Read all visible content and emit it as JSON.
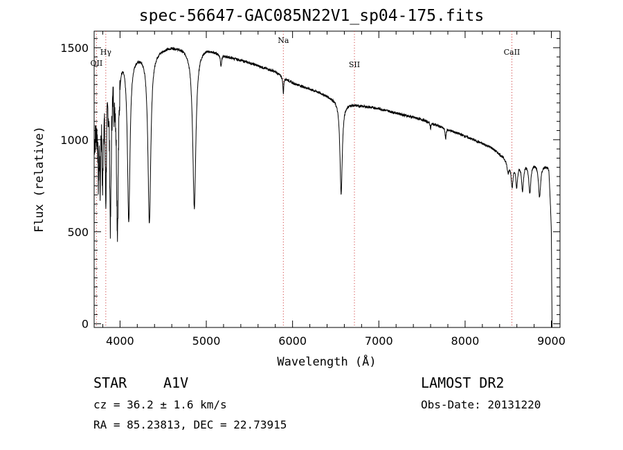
{
  "chart_data": {
    "type": "line",
    "title": "spec-56647-GAC085N22V1_sp04-175.fits",
    "xlabel": "Wavelength (Å)",
    "ylabel": "Flux (relative)",
    "xlim": [
      3700,
      9100
    ],
    "ylim": [
      -20,
      1590
    ],
    "xticks": [
      4000,
      5000,
      6000,
      7000,
      8000,
      9000
    ],
    "yticks": [
      0,
      500,
      1000,
      1500
    ],
    "line_color": "#000000",
    "marker_color": "#cc3333",
    "line_markers": [
      {
        "label": "OII",
        "x": 3727
      },
      {
        "label": "Hγ",
        "x": 3835
      },
      {
        "label": "Na",
        "x": 5893
      },
      {
        "label": "SII",
        "x": 6717
      },
      {
        "label": "CaII",
        "x": 8542
      }
    ],
    "continuum": [
      [
        3700,
        1000
      ],
      [
        3800,
        1300
      ],
      [
        3900,
        1400
      ],
      [
        4000,
        1480
      ],
      [
        4200,
        1470
      ],
      [
        4400,
        1490
      ],
      [
        4600,
        1510
      ],
      [
        4800,
        1500
      ],
      [
        5000,
        1500
      ],
      [
        5200,
        1460
      ],
      [
        5500,
        1420
      ],
      [
        5800,
        1370
      ],
      [
        6000,
        1310
      ],
      [
        6300,
        1260
      ],
      [
        6600,
        1200
      ],
      [
        7000,
        1170
      ],
      [
        7500,
        1110
      ],
      [
        8000,
        1020
      ],
      [
        8300,
        960
      ],
      [
        8500,
        890
      ],
      [
        8800,
        880
      ],
      [
        8970,
        860
      ],
      [
        9000,
        600
      ],
      [
        9010,
        0
      ]
    ],
    "absorption_lines": [
      {
        "center": 3750,
        "depth": 350,
        "width": 6
      },
      {
        "center": 3770,
        "depth": 400,
        "width": 6
      },
      {
        "center": 3798,
        "depth": 500,
        "width": 8
      },
      {
        "center": 3835,
        "depth": 600,
        "width": 9
      },
      {
        "center": 3889,
        "depth": 800,
        "width": 11
      },
      {
        "center": 3933,
        "depth": 150,
        "width": 4
      },
      {
        "center": 3970,
        "depth": 900,
        "width": 14
      },
      {
        "center": 4101,
        "depth": 900,
        "width": 18
      },
      {
        "center": 4340,
        "depth": 930,
        "width": 20
      },
      {
        "center": 4861,
        "depth": 870,
        "width": 22
      },
      {
        "center": 5170,
        "depth": 60,
        "width": 8
      },
      {
        "center": 5893,
        "depth": 90,
        "width": 6
      },
      {
        "center": 6563,
        "depth": 500,
        "width": 16
      },
      {
        "center": 7600,
        "depth": 30,
        "width": 6
      },
      {
        "center": 7774,
        "depth": 60,
        "width": 6
      },
      {
        "center": 8498,
        "depth": 60,
        "width": 14
      },
      {
        "center": 8545,
        "depth": 130,
        "width": 14
      },
      {
        "center": 8598,
        "depth": 130,
        "width": 14
      },
      {
        "center": 8665,
        "depth": 150,
        "width": 14
      },
      {
        "center": 8750,
        "depth": 160,
        "width": 15
      },
      {
        "center": 8863,
        "depth": 180,
        "width": 15
      },
      {
        "center": 9015,
        "depth": 200,
        "width": 15
      }
    ]
  },
  "info": {
    "object_class": "STAR",
    "object_subclass": "A1V",
    "survey": "LAMOST DR2",
    "redshift_text": "cz = 36.2 ± 1.6 km/s",
    "obs_date_text": "Obs-Date: 20131220",
    "coords_text": "RA =  85.23813, DEC =  22.73915"
  }
}
